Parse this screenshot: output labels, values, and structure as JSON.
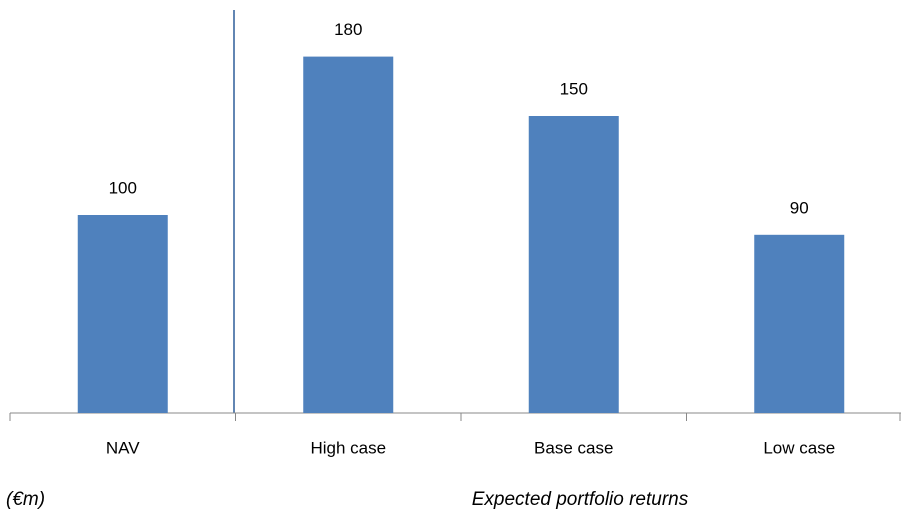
{
  "chart_data": {
    "type": "bar",
    "categories": [
      "NAV",
      "High case",
      "Base case",
      "Low case"
    ],
    "values": [
      100,
      180,
      150,
      90
    ],
    "color": "#4f81bd",
    "ylim": [
      0,
      200
    ],
    "data_labels": true,
    "annotations": [
      "(€m)",
      "Expected portfolio returns"
    ]
  }
}
